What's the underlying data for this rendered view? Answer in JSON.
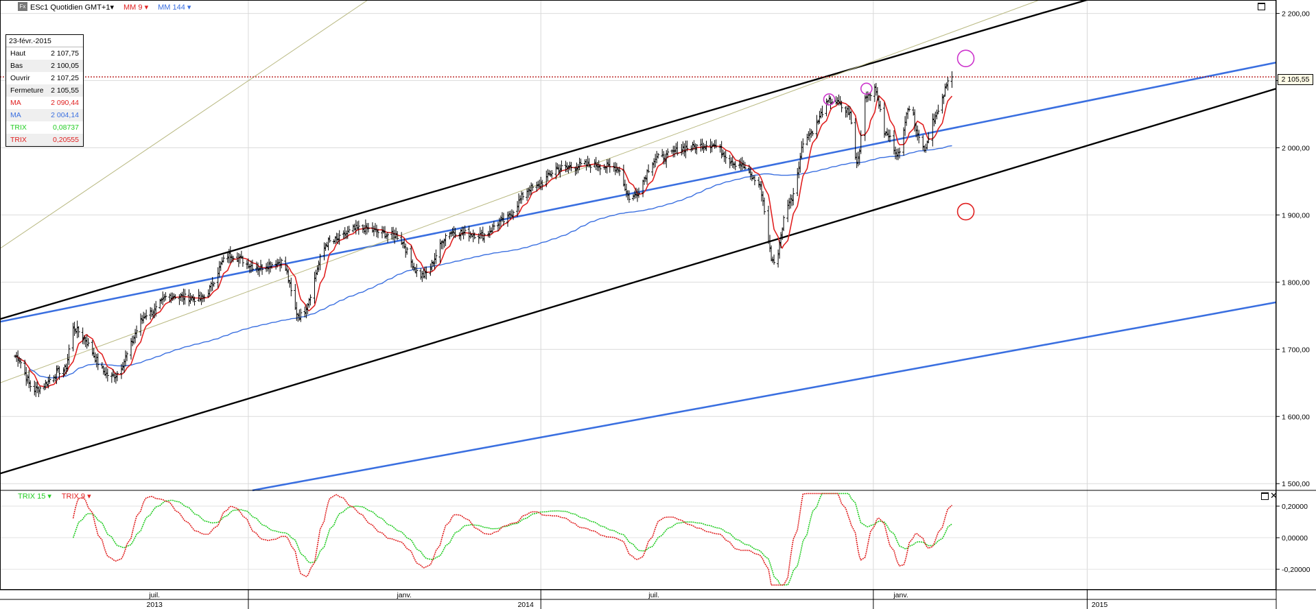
{
  "header": {
    "instrument": "ESc1 Quotidien GMT+1",
    "ma_fast_label": "MM 9",
    "ma_slow_label": "MM 144",
    "fx_icon_text": "Fx"
  },
  "info_box": {
    "date": "23-févr.-2015",
    "rows": [
      {
        "label": "Haut",
        "value": "2 107,75",
        "color": "#000000"
      },
      {
        "label": "Bas",
        "value": "2 100,05",
        "color": "#000000"
      },
      {
        "label": "Ouvrir",
        "value": "2 107,25",
        "color": "#000000"
      },
      {
        "label": "Fermeture",
        "value": "2 105,55",
        "color": "#000000"
      },
      {
        "label": "MA",
        "value": "2 090,44",
        "color": "#e02020"
      },
      {
        "label": "MA",
        "value": "2 004,14",
        "color": "#3a6fe0"
      },
      {
        "label": "TRIX",
        "value": "0,08737",
        "color": "#22cc22"
      },
      {
        "label": "TRIX",
        "value": "0,20555",
        "color": "#e02020"
      }
    ]
  },
  "last_price_label": "2 105,55",
  "trix_panel": {
    "trix_slow_label": "TRIX 15",
    "trix_fast_label": "TRIX 9",
    "ticks": [
      "0,20000",
      "0,00000",
      "-0,20000"
    ]
  },
  "colors": {
    "price_bars": "#000000",
    "ma_fast": "#e02020",
    "ma_slow": "#3a6fe0",
    "trend_channel": "#000000",
    "trend_blue": "#3a6fe0",
    "trend_olive": "#b8b880",
    "trix_slow": "#22cc22",
    "trix_fast": "#e02020",
    "marker_magenta": "#cc33cc",
    "marker_red": "#e02020"
  },
  "chart_data": {
    "type": "line",
    "price_axis": {
      "ticks": [
        "2 200,00",
        "2 100,00",
        "2 000,00",
        "1 900,00",
        "1 800,00",
        "1 700,00",
        "1 600,00",
        "1 500,00"
      ],
      "ylim": [
        1490,
        2220
      ]
    },
    "trix_axis": {
      "ticks": [
        0.2,
        0.0,
        -0.2
      ],
      "ylim": [
        -0.33,
        0.3
      ]
    },
    "month_ticks": [
      "juil.",
      "janv.",
      "juil.",
      "janv."
    ],
    "year_ticks": [
      "2013",
      "2014",
      "2015"
    ],
    "price_anchors": [
      [
        "2013-04-15",
        1690
      ],
      [
        "2013-04-29",
        1640
      ],
      [
        "2013-05-21",
        1670
      ],
      [
        "2013-05-27",
        1730
      ],
      [
        "2013-06-24",
        1660
      ],
      [
        "2013-07-22",
        1755
      ],
      [
        "2013-08-05",
        1780
      ],
      [
        "2013-08-27",
        1775
      ],
      [
        "2013-09-18",
        1840
      ],
      [
        "2013-10-08",
        1822
      ],
      [
        "2013-10-25",
        1830
      ],
      [
        "2013-11-07",
        1750
      ],
      [
        "2013-11-29",
        1860
      ],
      [
        "2013-12-20",
        1880
      ],
      [
        "2014-01-15",
        1870
      ],
      [
        "2014-02-04",
        1810
      ],
      [
        "2014-02-25",
        1875
      ],
      [
        "2014-03-20",
        1870
      ],
      [
        "2014-04-02",
        1890
      ],
      [
        "2014-04-25",
        1940
      ],
      [
        "2014-05-15",
        1970
      ],
      [
        "2014-06-05",
        1975
      ],
      [
        "2014-06-25",
        1970
      ],
      [
        "2014-07-05",
        1925
      ],
      [
        "2014-07-25",
        1985
      ],
      [
        "2014-08-15",
        2000
      ],
      [
        "2014-09-01",
        2005
      ],
      [
        "2014-09-22",
        1975
      ],
      [
        "2014-10-05",
        1950
      ],
      [
        "2014-10-17",
        1830
      ],
      [
        "2014-10-28",
        1920
      ],
      [
        "2014-11-10",
        2020
      ],
      [
        "2014-11-28",
        2070
      ],
      [
        "2014-12-10",
        2055
      ],
      [
        "2014-12-16",
        1980
      ],
      [
        "2014-12-23",
        2080
      ],
      [
        "2014-12-29",
        2085
      ],
      [
        "2015-01-06",
        2020
      ],
      [
        "2015-01-16",
        1990
      ],
      [
        "2015-01-22",
        2060
      ],
      [
        "2015-02-03",
        2000
      ],
      [
        "2015-02-10",
        2045
      ],
      [
        "2015-02-23",
        2105
      ]
    ],
    "ma9_last": 2090.44,
    "ma144_last": 2004.14,
    "trix15_last": 0.08737,
    "trix9_last": 0.20555,
    "series": [
      {
        "name": "MM 9",
        "values": [
          2090.44
        ]
      },
      {
        "name": "MM 144",
        "values": [
          2004.14
        ]
      },
      {
        "name": "TRIX 15",
        "values": [
          0.08737
        ]
      },
      {
        "name": "TRIX 9",
        "values": [
          0.20555
        ]
      }
    ],
    "trend_lines": [
      {
        "role": "channel-upper",
        "from": [
          "2013-04-04",
          1745
        ],
        "to": [
          "2015-06-04",
          2222
        ]
      },
      {
        "role": "channel-lower",
        "from": [
          "2013-04-04",
          1515
        ],
        "to": [
          "2015-10-16",
          2088
        ]
      },
      {
        "role": "blue-upper",
        "from": [
          "2013-04-04",
          1741
        ],
        "to": [
          "2015-10-16",
          2127
        ]
      },
      {
        "role": "blue-lower",
        "from": [
          "2013-10-04",
          1490
        ],
        "to": [
          "2015-10-16",
          1770
        ]
      },
      {
        "role": "olive-1",
        "from": [
          "2013-04-04",
          1850
        ],
        "to": [
          "2013-12-28",
          2222
        ]
      },
      {
        "role": "olive-2",
        "from": [
          "2013-04-04",
          1650
        ],
        "to": [
          "2015-04-30",
          2222
        ]
      }
    ],
    "price_reference_line": 2105.55,
    "markers": [
      {
        "date": "2014-11-26",
        "price": 2072,
        "color": "magenta"
      },
      {
        "date": "2014-12-23",
        "price": 2088,
        "color": "magenta"
      },
      {
        "date": "2015-03-05",
        "price": 2133,
        "color": "magenta"
      },
      {
        "date": "2015-03-05",
        "price": 1905,
        "color": "red"
      }
    ]
  }
}
